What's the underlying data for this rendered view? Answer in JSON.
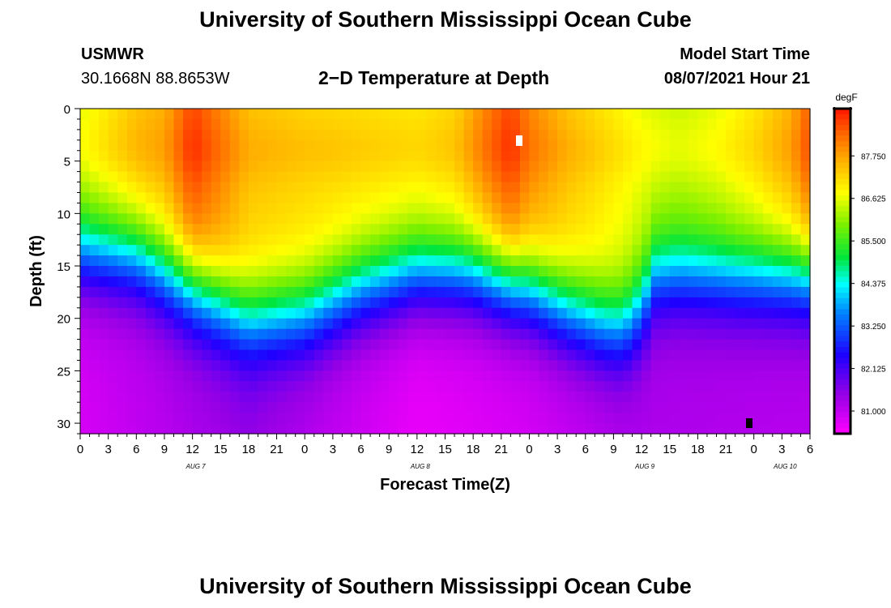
{
  "page": {
    "title_top": "University of Southern Mississippi Ocean Cube",
    "title_bottom": "University of Southern Mississippi Ocean Cube",
    "station_name": "USMWR",
    "station_coords": "30.1668N  88.8653W",
    "plot_title": "2−D Temperature at Depth",
    "model_start_label": "Model Start Time",
    "model_start_value": "08/07/2021 Hour 21"
  },
  "chart_data": {
    "type": "heatmap",
    "title": "2−D Temperature at Depth",
    "xlabel": "Forecast Time(Z)",
    "ylabel": "Depth (ft)",
    "colorbar_unit": "degF",
    "x_hours_from_aug7_00z": [
      0,
      78
    ],
    "y_depth_ft_range": [
      0,
      31
    ],
    "x_tick_labels": [
      "0",
      "3",
      "6",
      "9",
      "12",
      "15",
      "18",
      "21",
      "0",
      "3",
      "6",
      "9",
      "12",
      "15",
      "18",
      "21",
      "0",
      "3",
      "6",
      "9",
      "12",
      "15",
      "18",
      "21",
      "0",
      "3",
      "6"
    ],
    "y_tick_labels": [
      "0",
      "5",
      "10",
      "15",
      "20",
      "25",
      "30"
    ],
    "y_tick_values": [
      0,
      5,
      10,
      15,
      20,
      25,
      30
    ],
    "date_labels": [
      {
        "text": "AUG 7",
        "hour": 12
      },
      {
        "text": "AUG 8",
        "hour": 36
      },
      {
        "text": "AUG 9",
        "hour": 60
      },
      {
        "text": "AUG 10",
        "hour": 75
      }
    ],
    "colorbar_ticks": [
      "87.750",
      "86.625",
      "85.500",
      "84.375",
      "83.250",
      "82.125",
      "81.000"
    ],
    "colorbar_tick_values": [
      87.75,
      86.625,
      85.5,
      84.375,
      83.25,
      82.125,
      81.0
    ],
    "colorbar_range_degF": [
      80.4,
      89.0
    ],
    "surface_temperature_degF": {
      "hours": [
        0,
        6,
        9,
        12,
        15,
        18,
        24,
        30,
        36,
        40,
        44,
        46,
        48,
        52,
        56,
        58,
        60,
        64,
        68,
        72,
        76,
        78
      ],
      "values": [
        86.6,
        87.4,
        87.6,
        88.6,
        88.0,
        87.4,
        87.2,
        87.1,
        87.0,
        87.2,
        88.2,
        88.6,
        88.0,
        87.4,
        87.0,
        86.8,
        86.6,
        86.4,
        86.6,
        87.0,
        87.6,
        88.4
      ]
    },
    "mixed_layer_depth_ft": {
      "hours": [
        0,
        6,
        12,
        18,
        24,
        30,
        36,
        42,
        48,
        52,
        56,
        58,
        60,
        61.5,
        64,
        70,
        78
      ],
      "values": [
        13.5,
        14,
        17,
        20,
        19.5,
        17,
        15.5,
        15.5,
        17,
        19,
        20.5,
        20.8,
        18.8,
        15.8,
        15.5,
        15.8,
        15.8
      ]
    },
    "deep_temperature_degF": {
      "hours": [
        0,
        18,
        36,
        48,
        60,
        78
      ],
      "values": [
        80.8,
        81.4,
        80.6,
        80.8,
        81.2,
        81.1
      ]
    }
  }
}
